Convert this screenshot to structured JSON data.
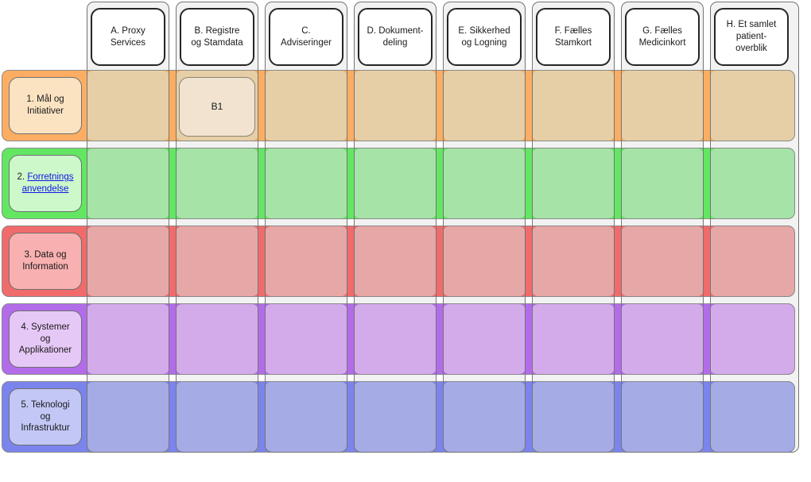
{
  "diagram": {
    "columns": [
      {
        "id": "A",
        "label": "A. Proxy\nServices"
      },
      {
        "id": "B",
        "label": "B. Registre\nog Stamdata"
      },
      {
        "id": "C",
        "label": "C.\nAdviseringer"
      },
      {
        "id": "D",
        "label": "D. Dokument-\ndeling"
      },
      {
        "id": "E",
        "label": "E. Sikkerhed\nog Logning"
      },
      {
        "id": "F",
        "label": "F. Fælles\nStamkort"
      },
      {
        "id": "G",
        "label": "G. Fælles\nMedicinkort"
      },
      {
        "id": "H",
        "label": "H. Et samlet\npatient-\noverblik"
      }
    ],
    "rows": [
      {
        "id": "1",
        "label": "1. Mål og\nInitiativer"
      },
      {
        "id": "2",
        "label_prefix": "2. ",
        "link_text": "Forretnings\nanvendelse"
      },
      {
        "id": "3",
        "label": "3. Data og\nInformation"
      },
      {
        "id": "4",
        "label": "4. Systemer\nog\nApplikationer"
      },
      {
        "id": "5",
        "label": "5. Teknologi\nog\nInfrastruktur"
      }
    ],
    "shapes": [
      {
        "id": "B1",
        "label": "B1",
        "row": "1",
        "column": "B"
      }
    ],
    "colors": {
      "page_background": "#ffffff",
      "column_fill": "#f2f2f2",
      "column_border": "#757575",
      "header_fill": "#ffffff",
      "header_border": "#262626",
      "header_text": "#1a1a1a",
      "band_border": "#8a8a8a",
      "link_text_color": "#1414e8",
      "shape_b1_fill": "#f1e3d0",
      "shape_b1_border": "#8b8272",
      "row_colors": [
        {
          "band": "#fbae63",
          "header": "#fbe3c2",
          "cell": "#e6cfa6"
        },
        {
          "band": "#63e763",
          "header": "#cdf8ca",
          "cell": "#a6e3a6"
        },
        {
          "band": "#f06b6b",
          "header": "#f8b0b0",
          "cell": "#e6a7a7"
        },
        {
          "band": "#b26cea",
          "header": "#e6c8f7",
          "cell": "#d3abea"
        },
        {
          "band": "#7b84ec",
          "header": "#c2c7f5",
          "cell": "#a5abe5"
        }
      ]
    }
  }
}
